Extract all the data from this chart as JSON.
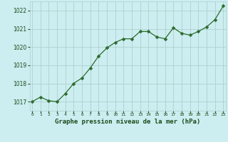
{
  "x": [
    0,
    1,
    2,
    3,
    4,
    5,
    6,
    7,
    8,
    9,
    10,
    11,
    12,
    13,
    14,
    15,
    16,
    17,
    18,
    19,
    20,
    21,
    22,
    23
  ],
  "y": [
    1017.0,
    1017.25,
    1017.05,
    1017.0,
    1017.45,
    1018.0,
    1018.3,
    1018.85,
    1019.5,
    1019.95,
    1020.25,
    1020.45,
    1020.45,
    1020.85,
    1020.85,
    1020.55,
    1020.45,
    1021.05,
    1020.75,
    1020.65,
    1020.85,
    1021.1,
    1021.5,
    1022.25
  ],
  "line_color": "#2d6a2d",
  "marker": "D",
  "marker_size": 2.5,
  "bg_color": "#cceef0",
  "grid_color": "#b0cece",
  "xlabel": "Graphe pression niveau de la mer (hPa)",
  "xlabel_color": "#1a4a1a",
  "tick_color": "#1a4a1a",
  "ylim": [
    1016.5,
    1022.5
  ],
  "yticks": [
    1017,
    1018,
    1019,
    1020,
    1021,
    1022
  ],
  "xticks": [
    0,
    1,
    2,
    3,
    4,
    5,
    6,
    7,
    8,
    9,
    10,
    11,
    12,
    13,
    14,
    15,
    16,
    17,
    18,
    19,
    20,
    21,
    22,
    23
  ],
  "xlim": [
    -0.3,
    23.3
  ]
}
